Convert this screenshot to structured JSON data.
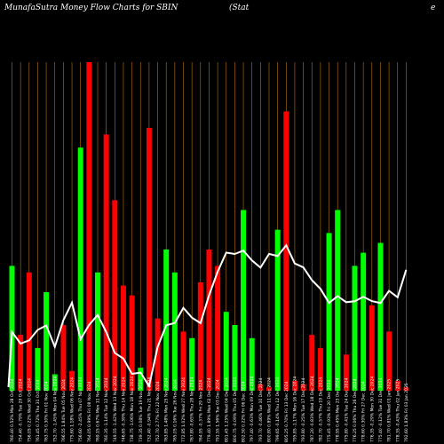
{
  "header": {
    "title_left": "MunafaSutra  Money Flow  Charts for SBIN",
    "title_mid": "(Stat",
    "title_right": "e"
  },
  "chart_data": {
    "type": "bar",
    "colors": {
      "up": "#00ff00",
      "down": "#ff0000",
      "line": "#ffffff",
      "grid": "#b8741a"
    },
    "grid": true,
    "category_labels": [
      "792.60 1.83% Fri 03 Jan 2025",
      "778.35 -0.43% Thu 02 Jan 2025",
      "781.70 0.81% Wed 01 Jan 2025",
      "775.40 -0.12% Tue 31 Dec 2024",
      "776.35 -0.29% Mon 30 Dec 2024",
      "778.60 0.30% Fri 27 Dec 2024",
      "776.25 0.06% Thu 26 Dec 2024",
      "775.80 -0.41% Tue 24 Dec 2024",
      "778.95 0.45% Mon 23 Dec 2024",
      "775.45 -0.93% Fri 20 Dec 2024",
      "782.70 -0.57% Thu 19 Dec 2024",
      "787.20 -0.83% Wed 18 Dec 2024",
      "793.80 -0.25% Tue 17 Dec 2024",
      "795.85 -1.17% Mon 16 Dec 2024",
      "805.25 0.70% Fri 13 Dec 2024",
      "799.65 -0.14% Thu 12 Dec 2024",
      "800.80 0.89% Wed 11 Dec 2024",
      "793.70 -0.46% Tue 10 Dec 2024",
      "797.40 -0.63% Mon 09 Dec 2024",
      "802.50 0.22% Fri 06 Dec 2024",
      "800.75 -0.09% Thu 05 Dec 2024",
      "801.45 1.25% Wed 04 Dec 2024",
      "791.55 1.56% Tue 03 Dec 2024",
      "779.40 1.89% Mon 02 Dec 2024",
      "764.95 -0.37% Fri 29 Nov 2024",
      "767.80 -0.65% Thu 28 Nov 2024",
      "772.85 1.02% Wed 27 Nov 2024",
      "765.05 0.16% Tue 26 Nov 2024",
      "763.85 1.48% Mon 25 Nov 2024",
      "752.70 2.77% Fri 22 Nov 2024",
      "732.40 -0.94% Thu 21 Nov 2024",
      "739.35 0.08% Tue 19 Nov 2024",
      "738.75 -1.06% Mon 18 Nov 2024",
      "746.65 -0.39% Thu 14 Nov 2024",
      "749.55 -1.42% Wed 13 Nov 2024",
      "760.35 -1.14% Tue 12 Nov 2024",
      "769.15 0.67% Mon 11 Nov 2024",
      "764.05 0.99% Fri 08 Nov 2024",
      "756.60 -2.45% Thu 07 Nov 2024",
      "775.60 1.18% Wed 06 Nov 2024",
      "766.55 1.84% Tue 05 Nov 2024",
      "752.70 -1.45% Mon 04 Nov 2024",
      "763.75 0.30% Fri 01 Nov 2024",
      "761.45 0.72% Thu 31 Oct 2024",
      "756.05 0.22% Wed 30 Oct 2024",
      "754.40 -0.79% Tue 29 Oct 2024",
      "760.40 0.52% Mon 28 Oct 2024"
    ],
    "flow": [
      "down",
      "down",
      "down",
      "up",
      "down",
      "up",
      "up",
      "down",
      "up",
      "up",
      "down",
      "down",
      "down",
      "down",
      "down",
      "up",
      "down",
      "down",
      "up",
      "up",
      "up",
      "up",
      "down",
      "down",
      "down",
      "up",
      "down",
      "up",
      "up",
      "down",
      "down",
      "up",
      "down",
      "down",
      "down",
      "down",
      "up",
      "down",
      "up",
      "down",
      "down",
      "up",
      "up",
      "up",
      "down",
      "down",
      "up"
    ],
    "values": [
      1,
      3,
      18,
      45,
      26,
      42,
      38,
      11,
      55,
      48,
      13,
      17,
      2,
      3,
      85,
      49,
      1,
      2,
      16,
      55,
      20,
      24,
      38,
      43,
      33,
      16,
      18,
      36,
      43,
      22,
      80,
      7,
      29,
      32,
      58,
      78,
      36,
      100,
      74,
      6,
      20,
      5,
      30,
      13,
      36,
      17,
      38
    ],
    "price": [
      792.6,
      778.35,
      781.7,
      775.4,
      776.35,
      778.6,
      776.25,
      775.8,
      778.95,
      775.45,
      782.7,
      787.2,
      793.8,
      795.85,
      805.25,
      799.65,
      800.8,
      793.7,
      797.4,
      802.5,
      800.75,
      801.45,
      791.55,
      779.4,
      764.95,
      767.8,
      772.85,
      765.05,
      763.85,
      752.7,
      732.4,
      739.35,
      738.75,
      746.65,
      749.55,
      760.35,
      769.15,
      764.05,
      756.6,
      775.6,
      766.55,
      752.7,
      763.75,
      761.45,
      756.05,
      754.4,
      760.4
    ],
    "order": "newest-first"
  }
}
